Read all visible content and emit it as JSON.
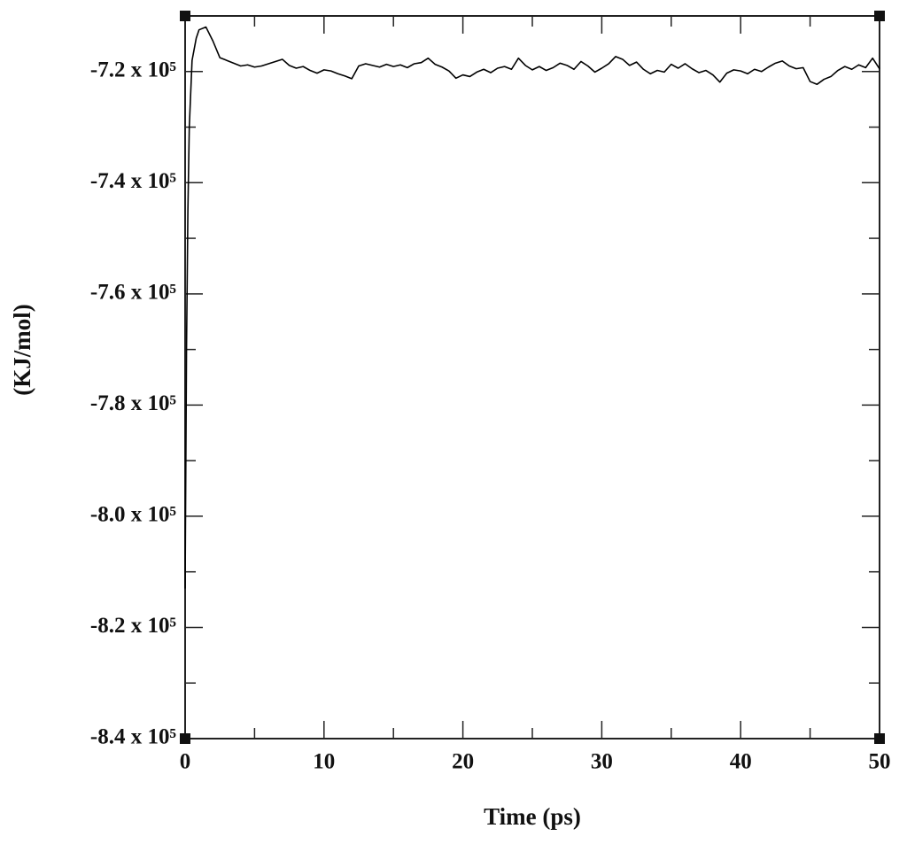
{
  "chart_data": {
    "type": "line",
    "x_label": "Time (ps)",
    "y_label": "(KJ/mol)",
    "xlim": [
      0,
      50
    ],
    "xticks": [
      0,
      10,
      20,
      30,
      40,
      50
    ],
    "ylim": [
      -840000,
      -710000
    ],
    "yticks": [
      {
        "value": -840000,
        "label": "-8.4 x 10⁵"
      },
      {
        "value": -820000,
        "label": "-8.2 x 10⁵"
      },
      {
        "value": -800000,
        "label": "-8.0 x 10⁵"
      },
      {
        "value": -780000,
        "label": "-7.8 x 10⁵"
      },
      {
        "value": -760000,
        "label": "-7.6 x 10⁵"
      },
      {
        "value": -740000,
        "label": "-7.4 x 10⁵"
      },
      {
        "value": -720000,
        "label": "-7.2 x 10⁵"
      }
    ],
    "x": [
      0,
      0.1,
      0.2,
      0.3,
      0.5,
      0.8,
      1,
      1.5,
      2,
      2.5,
      3,
      3.5,
      4,
      4.5,
      5,
      5.5,
      6,
      6.5,
      7,
      7.5,
      8,
      8.5,
      9,
      9.5,
      10,
      10.5,
      11,
      11.5,
      12,
      12.5,
      13,
      13.5,
      14,
      14.5,
      15,
      15.5,
      16,
      16.5,
      17,
      17.5,
      18,
      18.5,
      19,
      19.5,
      20,
      20.5,
      21,
      21.5,
      22,
      22.5,
      23,
      23.5,
      24,
      24.5,
      25,
      25.5,
      26,
      26.5,
      27,
      27.5,
      28,
      28.5,
      29,
      29.5,
      30,
      30.5,
      31,
      31.5,
      32,
      32.5,
      33,
      33.5,
      34,
      34.5,
      35,
      35.5,
      36,
      36.5,
      37,
      37.5,
      38,
      38.5,
      39,
      39.5,
      40,
      40.5,
      41,
      41.5,
      42,
      42.5,
      43,
      43.5,
      44,
      44.5,
      45,
      45.5,
      46,
      46.5,
      47,
      47.5,
      48,
      48.5,
      49,
      49.5,
      50
    ],
    "series": [
      {
        "color": "#000000",
        "values": [
          -813000,
          -770000,
          -745000,
          -730000,
          -718000,
          -714000,
          -712500,
          -712000,
          -714500,
          -717500,
          -718000,
          -718500,
          -719000,
          -718800,
          -719200,
          -719000,
          -718600,
          -718200,
          -717800,
          -718900,
          -719400,
          -719100,
          -719800,
          -720300,
          -719700,
          -719900,
          -720400,
          -720800,
          -721300,
          -719000,
          -718600,
          -718900,
          -719200,
          -718700,
          -719100,
          -718800,
          -719300,
          -718600,
          -718400,
          -717600,
          -718700,
          -719200,
          -719900,
          -721200,
          -720600,
          -720900,
          -720100,
          -719600,
          -720200,
          -719400,
          -719100,
          -719600,
          -717600,
          -718900,
          -719700,
          -719100,
          -719800,
          -719300,
          -718500,
          -718900,
          -719600,
          -718200,
          -719000,
          -720100,
          -719400,
          -718600,
          -717300,
          -717800,
          -718900,
          -718300,
          -719600,
          -720400,
          -719800,
          -720100,
          -718700,
          -719400,
          -718600,
          -719500,
          -720200,
          -719800,
          -720600,
          -721900,
          -720300,
          -719700,
          -719900,
          -720400,
          -719600,
          -720000,
          -719200,
          -718500,
          -718100,
          -719000,
          -719500,
          -719300,
          -721800,
          -722300,
          -721400,
          -720900,
          -719800,
          -719100,
          -719600,
          -718800,
          -719300,
          -717600,
          -719500
        ]
      }
    ]
  }
}
